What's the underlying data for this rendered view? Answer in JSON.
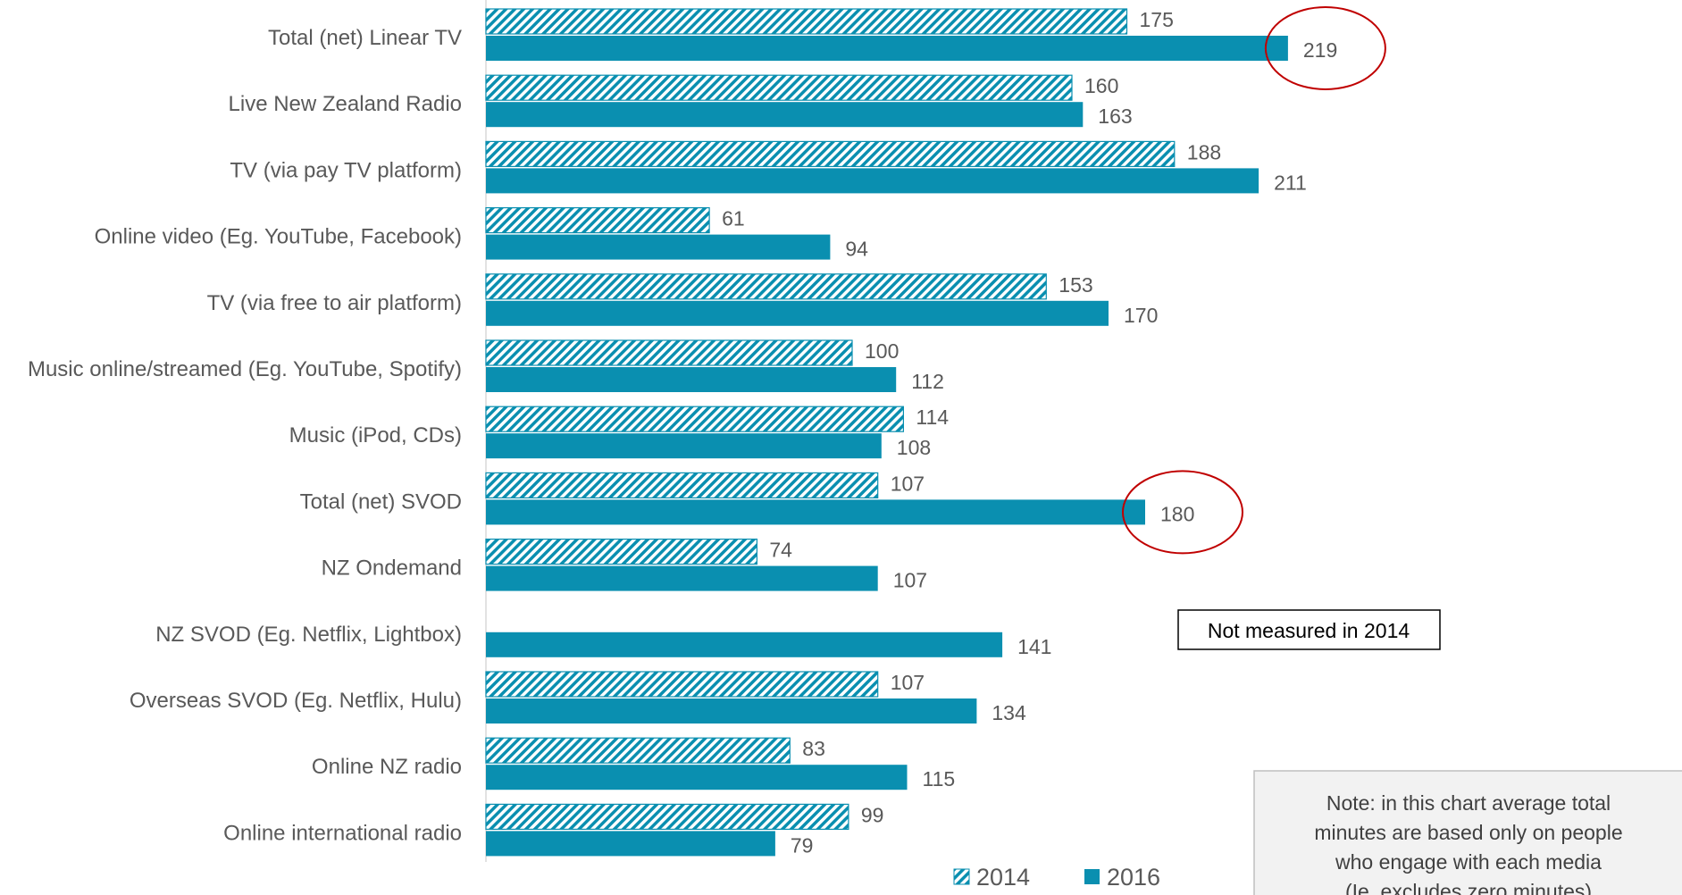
{
  "chart_data": {
    "type": "bar",
    "orientation": "horizontal",
    "categories": [
      "Total (net) Linear TV",
      "Live New Zealand Radio",
      "TV (via pay TV platform)",
      "Online video (Eg. YouTube, Facebook)",
      "TV (via free to air platform)",
      "Music online/streamed (Eg. YouTube, Spotify)",
      "Music (iPod, CDs)",
      "Total (net) SVOD",
      "NZ Ondemand",
      "NZ SVOD (Eg. Netflix, Lightbox)",
      "Overseas SVOD (Eg. Netflix, Hulu)",
      "Online NZ radio",
      "Online international radio"
    ],
    "series": [
      {
        "name": "2014",
        "values": [
          175,
          160,
          188,
          61,
          153,
          100,
          114,
          107,
          74,
          null,
          107,
          83,
          99
        ],
        "color": "#0a8fb0",
        "pattern": "diagonal-hatch"
      },
      {
        "name": "2016",
        "values": [
          219,
          163,
          211,
          94,
          170,
          112,
          108,
          180,
          107,
          141,
          134,
          115,
          79
        ],
        "color": "#0a8fb0",
        "pattern": "solid"
      }
    ],
    "xlim": [
      0,
      250
    ],
    "legend": {
      "position": "bottom",
      "items": [
        "2014",
        "2016"
      ]
    },
    "highlighted": [
      {
        "category": "Total (net) Linear TV",
        "series": "2016",
        "value": 219
      },
      {
        "category": "Total (net) SVOD",
        "series": "2016",
        "value": 180
      }
    ],
    "annotations": {
      "not_measured_box": "Not measured in 2014",
      "note_lines": [
        "Note: in this chart average total",
        "minutes are based only on people",
        "who engage with each media",
        "(Ie. excludes zero minutes)"
      ]
    },
    "highlight_color": "#c00000",
    "axis_color": "#d9d9d9"
  }
}
